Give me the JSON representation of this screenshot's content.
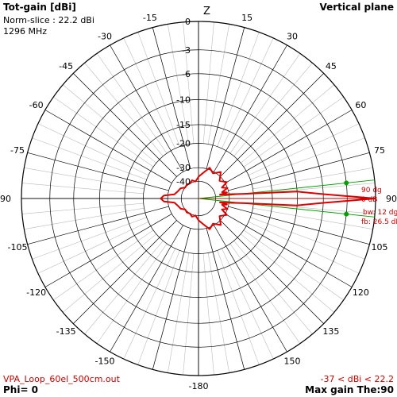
{
  "header": {
    "title": "Tot-gain [dBi]",
    "norm_slice": "Norm-slice : 22.2 dBi",
    "frequency": "1296 MHz",
    "plane": "Vertical plane",
    "z_label": "Z"
  },
  "footer": {
    "filename": "VPA_Loop_60el_500cm.out",
    "range": "-37 < dBi < 22.2",
    "phi": "Phi= 0",
    "max_gain": "Max gain The:90"
  },
  "annotations": {
    "beam_angle": "90 dg",
    "beam_gain": "0 dB",
    "beamwidth": "bw: 12 dg",
    "front_back": "fb: 26.5 dB"
  },
  "colors": {
    "pattern": "#dd0000",
    "beamwidth_lines": "#00a000",
    "grid": "#000000",
    "grid_minor": "#bbbbbb",
    "text_red": "#cc0000"
  },
  "chart_data": {
    "type": "polar",
    "title": "Tot-gain [dBi]",
    "angle_labels": [
      "0",
      "15",
      "30",
      "45",
      "60",
      "75",
      "90",
      "105",
      "120",
      "135",
      "150",
      "-180",
      "-150",
      "-135",
      "-120",
      "-105",
      "-90",
      "-75",
      "-60",
      "-45",
      "-30",
      "-15"
    ],
    "radial_labels": [
      "0",
      "-3",
      "-6",
      "-10",
      "-15",
      "-20",
      "-30",
      "-40"
    ],
    "radial_levels_db": [
      0,
      -3,
      -6,
      -10,
      -15,
      -20,
      -30,
      -40
    ],
    "max_gain_dbi": 22.2,
    "min_gain_dbi": -37,
    "beam_direction_deg": 90,
    "beamwidth_deg": 12,
    "front_to_back_db": 26.5,
    "pattern": {
      "name": "Tot-gain",
      "theta_deg": [
        0,
        10,
        20,
        30,
        40,
        50,
        60,
        65,
        70,
        75,
        78,
        80,
        82,
        84,
        86,
        88,
        90,
        92,
        94,
        96,
        98,
        100,
        102,
        105,
        110,
        115,
        120,
        130,
        140,
        150,
        160,
        170,
        180,
        190,
        200,
        210,
        220,
        230,
        240,
        250,
        260,
        265,
        270,
        275,
        280,
        290,
        300,
        310,
        320,
        330,
        340,
        350,
        360
      ],
      "gain_db": [
        -36,
        -33,
        -29,
        -31,
        -28,
        -32,
        -29,
        -33,
        -30,
        -34,
        -31,
        -36,
        -30,
        -24,
        -10,
        -6,
        0,
        -6,
        -10,
        -24,
        -30,
        -36,
        -31,
        -34,
        -30,
        -33,
        -29,
        -32,
        -28,
        -31,
        -29,
        -33,
        -36,
        -40,
        -38,
        -40,
        -39,
        -40,
        -37,
        -36,
        -34,
        -28,
        -26.5,
        -28,
        -34,
        -36,
        -37,
        -40,
        -39,
        -40,
        -38,
        -40,
        -36
      ]
    }
  }
}
